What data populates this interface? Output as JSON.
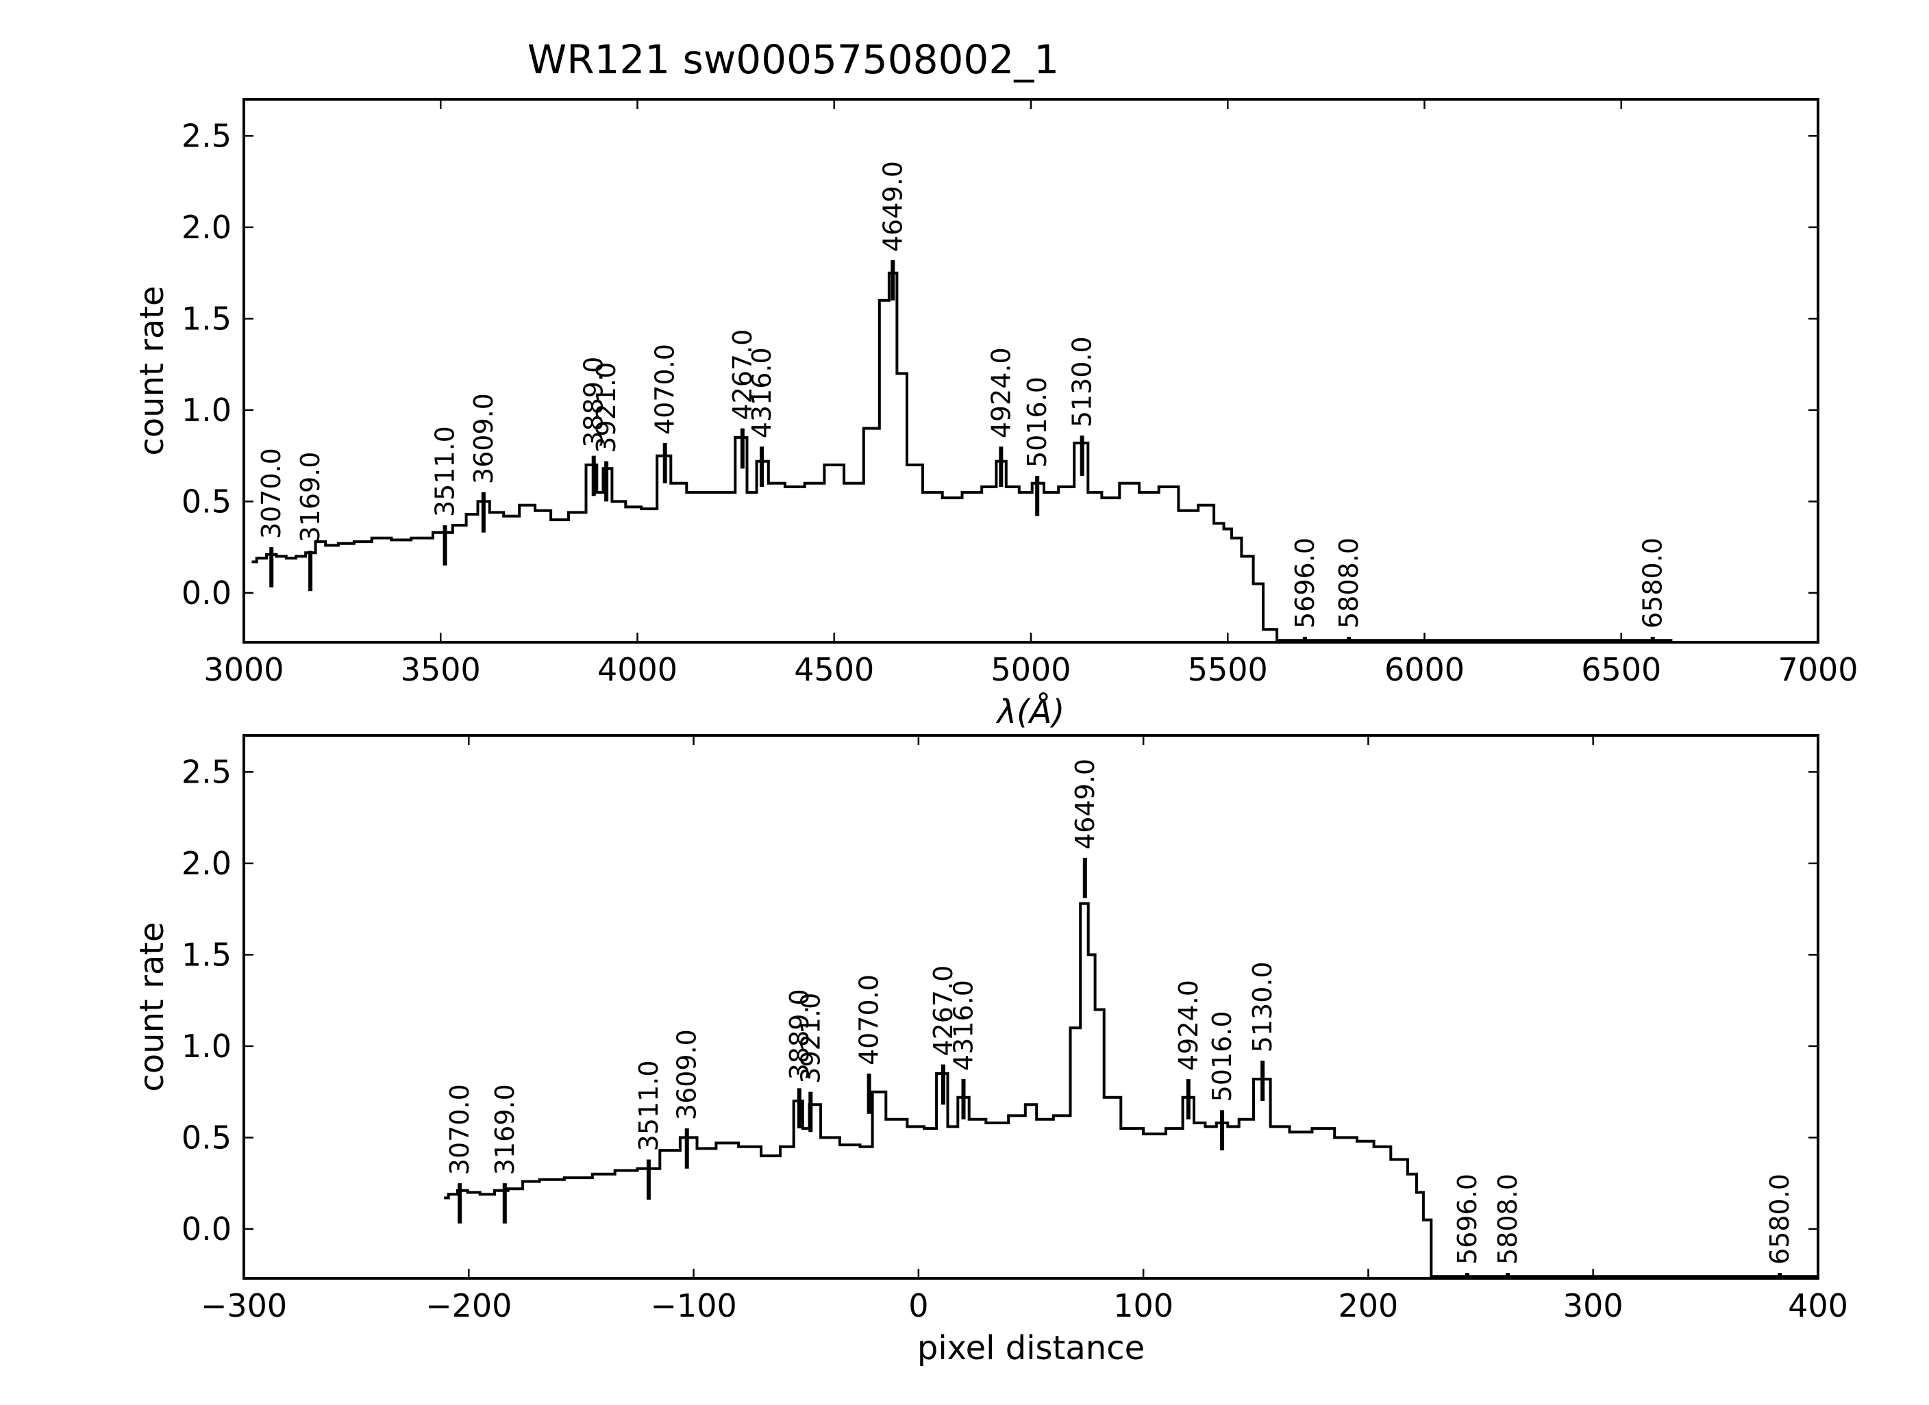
{
  "chart_data": {
    "type": "line",
    "title": "WR121  sw00057508002_1",
    "line_ids": [
      "3070.0",
      "3169.0",
      "3511.0",
      "3609.0",
      "3889.0",
      "3921.0",
      "4070.0",
      "4267.0",
      "4316.0",
      "4649.0",
      "4924.0",
      "5016.0",
      "5130.0",
      "5696.0",
      "5808.0",
      "6580.0"
    ],
    "panels": [
      {
        "id": "wavelength",
        "xlabel": "λ(Å)",
        "ylabel": "count rate",
        "xlim": [
          3000,
          7000
        ],
        "ylim": [
          -0.27,
          2.7
        ],
        "xticks": [
          3000,
          3500,
          4000,
          4500,
          5000,
          5500,
          6000,
          6500,
          7000
        ],
        "xtick_labels": [
          "3000",
          "3500",
          "4000",
          "4500",
          "5000",
          "5500",
          "6000",
          "6500",
          "7000"
        ],
        "yticks": [
          0.0,
          0.5,
          1.0,
          1.5,
          2.0,
          2.5
        ],
        "ytick_labels": [
          "0.0",
          "0.5",
          "1.0",
          "1.5",
          "2.0",
          "2.5"
        ],
        "x": [
          3020,
          3045,
          3070,
          3095,
          3120,
          3145,
          3169,
          3195,
          3220,
          3260,
          3300,
          3350,
          3400,
          3450,
          3511,
          3550,
          3580,
          3609,
          3640,
          3680,
          3720,
          3760,
          3800,
          3850,
          3889,
          3905,
          3921,
          3950,
          3990,
          4030,
          4070,
          4100,
          4150,
          4200,
          4230,
          4267,
          4290,
          4316,
          4350,
          4400,
          4450,
          4500,
          4550,
          4600,
          4630,
          4649,
          4670,
          4700,
          4750,
          4800,
          4850,
          4900,
          4924,
          4950,
          4990,
          5016,
          5050,
          5090,
          5130,
          5160,
          5200,
          5250,
          5300,
          5350,
          5400,
          5450,
          5480,
          5500,
          5520,
          5550,
          5580,
          5600,
          5650,
          6000,
          6630
        ],
        "y": [
          0.17,
          0.19,
          0.21,
          0.2,
          0.19,
          0.2,
          0.22,
          0.28,
          0.26,
          0.27,
          0.28,
          0.3,
          0.29,
          0.3,
          0.33,
          0.37,
          0.43,
          0.5,
          0.44,
          0.42,
          0.48,
          0.45,
          0.4,
          0.44,
          0.7,
          0.55,
          0.68,
          0.5,
          0.47,
          0.46,
          0.75,
          0.6,
          0.55,
          0.55,
          0.55,
          0.85,
          0.55,
          0.72,
          0.6,
          0.58,
          0.6,
          0.7,
          0.6,
          0.9,
          1.6,
          1.75,
          1.2,
          0.7,
          0.55,
          0.52,
          0.55,
          0.58,
          0.72,
          0.58,
          0.55,
          0.6,
          0.55,
          0.58,
          0.82,
          0.55,
          0.52,
          0.6,
          0.55,
          0.58,
          0.45,
          0.48,
          0.38,
          0.35,
          0.3,
          0.2,
          0.05,
          -0.2,
          -0.26,
          -0.26,
          -0.26
        ],
        "line_x": [
          3070,
          3169,
          3511,
          3609,
          3889,
          3921,
          4070,
          4267,
          4316,
          4649,
          4924,
          5016,
          5130,
          5696,
          5808,
          6580
        ],
        "marker_top": [
          0.25,
          0.23,
          0.37,
          0.55,
          0.75,
          0.72,
          0.82,
          0.9,
          0.8,
          1.82,
          0.8,
          0.64,
          0.86,
          -0.24,
          -0.24,
          -0.24
        ],
        "marker_length": 0.22
      },
      {
        "id": "pixel",
        "xlabel": "pixel distance",
        "ylabel": "count rate",
        "xlim": [
          -300,
          400
        ],
        "ylim": [
          -0.27,
          2.7
        ],
        "xticks": [
          -300,
          -200,
          -100,
          0,
          100,
          200,
          300,
          400
        ],
        "xtick_labels": [
          "−300",
          "−200",
          "−100",
          "0",
          "100",
          "200",
          "300",
          "400"
        ],
        "yticks": [
          0.0,
          0.5,
          1.0,
          1.5,
          2.0,
          2.5
        ],
        "ytick_labels": [
          "0.0",
          "0.5",
          "1.0",
          "1.5",
          "2.0",
          "2.5"
        ],
        "x": [
          -211,
          -207,
          -203,
          -198,
          -192,
          -185,
          -180,
          -172,
          -165,
          -150,
          -140,
          -130,
          -120,
          -110,
          -102,
          -95,
          -85,
          -75,
          -65,
          -58,
          -53,
          -50,
          -47,
          -40,
          -30,
          -22,
          -19,
          -10,
          0,
          5,
          11,
          15,
          20,
          25,
          35,
          45,
          50,
          55,
          65,
          70,
          74,
          77,
          80,
          85,
          95,
          105,
          115,
          120,
          125,
          130,
          135,
          140,
          145,
          153,
          160,
          170,
          180,
          190,
          200,
          205,
          215,
          220,
          223,
          226,
          230,
          260,
          300,
          400
        ],
        "y": [
          0.17,
          0.19,
          0.21,
          0.2,
          0.19,
          0.21,
          0.22,
          0.26,
          0.27,
          0.28,
          0.3,
          0.32,
          0.33,
          0.43,
          0.5,
          0.44,
          0.47,
          0.45,
          0.4,
          0.45,
          0.7,
          0.55,
          0.68,
          0.5,
          0.46,
          0.45,
          0.75,
          0.6,
          0.56,
          0.55,
          0.85,
          0.56,
          0.72,
          0.6,
          0.58,
          0.62,
          0.68,
          0.6,
          0.62,
          1.1,
          1.78,
          1.5,
          1.2,
          0.72,
          0.55,
          0.52,
          0.55,
          0.72,
          0.58,
          0.56,
          0.58,
          0.56,
          0.6,
          0.82,
          0.56,
          0.53,
          0.55,
          0.5,
          0.48,
          0.45,
          0.38,
          0.3,
          0.2,
          0.05,
          -0.26,
          -0.26,
          -0.26,
          -0.26
        ],
        "line_x": [
          -204,
          -184,
          -120,
          -103,
          -53,
          -48,
          -22,
          11,
          20,
          74,
          120,
          135,
          153,
          244,
          262,
          383
        ],
        "marker_top": [
          0.25,
          0.25,
          0.38,
          0.55,
          0.77,
          0.75,
          0.85,
          0.9,
          0.82,
          2.03,
          0.82,
          0.65,
          0.92,
          -0.24,
          -0.24,
          -0.24
        ],
        "marker_length": 0.22
      }
    ]
  }
}
